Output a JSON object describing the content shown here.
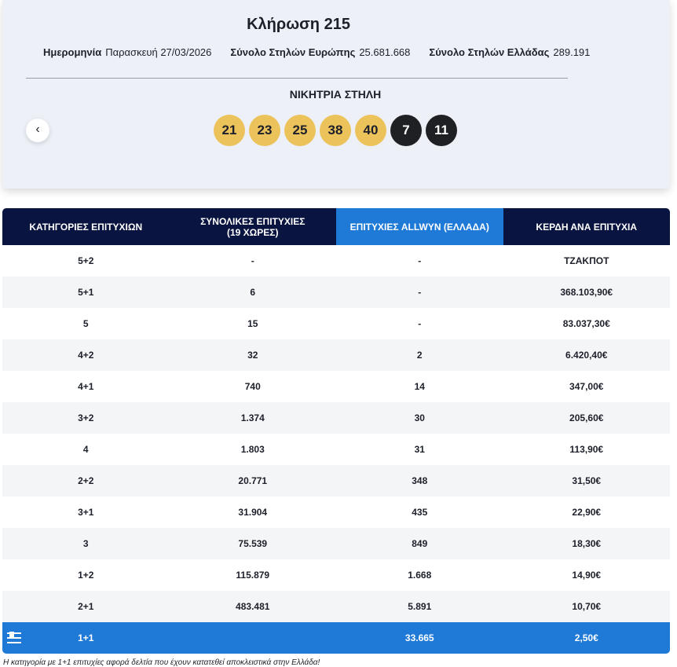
{
  "header": {
    "title": "Κλήρωση 215",
    "info": [
      {
        "label": "Ημερομηνία",
        "value": "Παρασκευή 27/03/2026"
      },
      {
        "label": "Σύνολο Στηλών Ευρώπης",
        "value": "25.681.668"
      },
      {
        "label": "Σύνολο Στηλών Ελλάδας",
        "value": "289.191"
      }
    ],
    "winning_title": "ΝΙΚΗΤΡΙΑ ΣΤΗΛΗ",
    "main_numbers": [
      "21",
      "23",
      "25",
      "38",
      "40"
    ],
    "extra_numbers": [
      "7",
      "11"
    ]
  },
  "table": {
    "headers": [
      "ΚΑΤΗΓΟΡΙΕΣ ΕΠΙΤΥΧΙΩΝ",
      "ΣΥΝΟΛΙΚΕΣ ΕΠΙΤΥΧΙΕΣ\n(19 ΧΩΡΕΣ)",
      "ΕΠΙΤΥΧΙΕΣ ALLWYN (ΕΛΛΑΔΑ)",
      "ΚΕΡΔΗ ΑΝΑ ΕΠΙΤΥΧΙΑ"
    ],
    "rows": [
      [
        "5+2",
        "-",
        "-",
        "ΤΖΑΚΠΟΤ"
      ],
      [
        "5+1",
        "6",
        "-",
        "368.103,90€"
      ],
      [
        "5",
        "15",
        "-",
        "83.037,30€"
      ],
      [
        "4+2",
        "32",
        "2",
        "6.420,40€"
      ],
      [
        "4+1",
        "740",
        "14",
        "347,00€"
      ],
      [
        "3+2",
        "1.374",
        "30",
        "205,60€"
      ],
      [
        "4",
        "1.803",
        "31",
        "113,90€"
      ],
      [
        "2+2",
        "20.771",
        "348",
        "31,50€"
      ],
      [
        "3+1",
        "31.904",
        "435",
        "22,90€"
      ],
      [
        "3",
        "75.539",
        "849",
        "18,30€"
      ],
      [
        "1+2",
        "115.879",
        "1.668",
        "14,90€"
      ],
      [
        "2+1",
        "483.481",
        "5.891",
        "10,70€"
      ],
      [
        "1+1",
        null,
        "33.665",
        "2,50€"
      ]
    ]
  },
  "footnote": "Η κατηγορία με 1+1 επιτυχίες αφορά δελτία που έχουν κατατεθεί αποκλειστικά στην Ελλάδα!"
}
